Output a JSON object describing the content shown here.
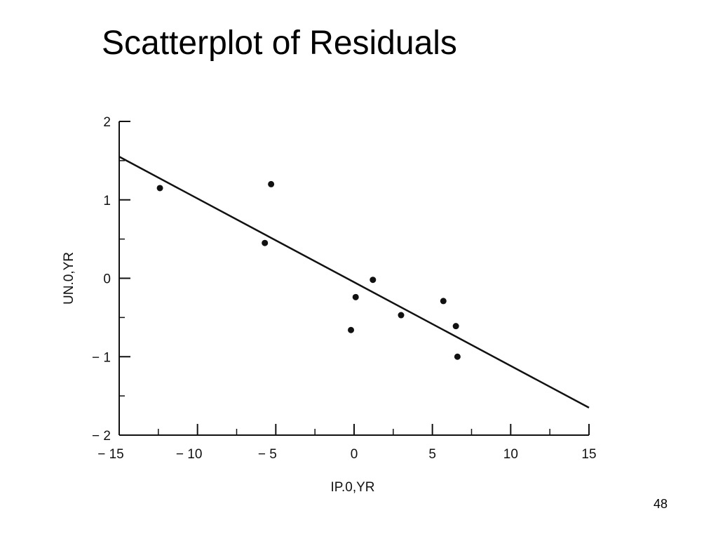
{
  "slide": {
    "title": "Scatterplot of Residuals",
    "number": "48"
  },
  "chart_data": {
    "type": "scatter",
    "title": "",
    "xlabel": "IP.0,YR",
    "ylabel": "UN.0,YR",
    "xlim": [
      -15,
      15
    ],
    "ylim": [
      -2,
      2
    ],
    "x_ticks": [
      -15,
      -10,
      -5,
      0,
      5,
      10,
      15
    ],
    "x_tick_labels": [
      "− 15",
      "− 10",
      "− 5",
      "0",
      "5",
      "10",
      "15"
    ],
    "y_ticks": [
      -2,
      -1,
      0,
      1,
      2
    ],
    "y_tick_labels": [
      "− 2",
      "− 1",
      "0",
      "1",
      "2"
    ],
    "grid": false,
    "points": [
      {
        "x": -12.4,
        "y": 1.15
      },
      {
        "x": -5.3,
        "y": 1.2
      },
      {
        "x": -5.7,
        "y": 0.45
      },
      {
        "x": 0.1,
        "y": -0.24
      },
      {
        "x": -0.2,
        "y": -0.66
      },
      {
        "x": 1.2,
        "y": -0.02
      },
      {
        "x": 3.0,
        "y": -0.47
      },
      {
        "x": 5.7,
        "y": -0.29
      },
      {
        "x": 6.5,
        "y": -0.61
      },
      {
        "x": 6.6,
        "y": -1.0
      }
    ],
    "fit_line": {
      "x": [
        -15,
        15
      ],
      "y": [
        1.55,
        -1.65
      ]
    },
    "colors": {
      "ink": "#111111"
    }
  }
}
